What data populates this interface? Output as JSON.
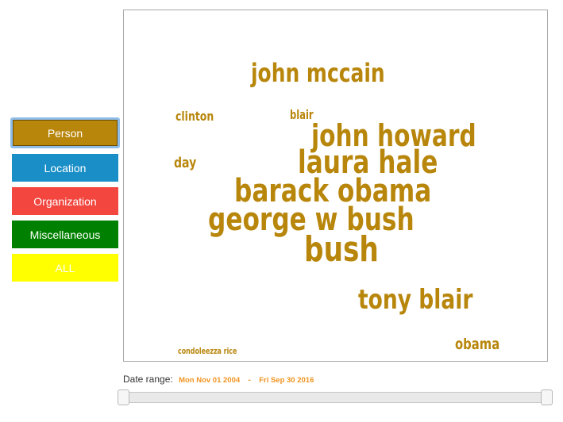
{
  "categories": [
    {
      "label": "Person",
      "color": "#b8860b",
      "selected": true
    },
    {
      "label": "Location",
      "color": "#1a8fc7"
    },
    {
      "label": "Organization",
      "color": "#f2463f"
    },
    {
      "label": "Miscellaneous",
      "color": "#008000"
    },
    {
      "label": "ALL",
      "color": "#ffff00"
    }
  ],
  "word_cloud": {
    "color": "#b8860b",
    "words": [
      "john mccain",
      "clinton",
      "blair",
      "john howard",
      "day",
      "laura hale",
      "barack obama",
      "george w bush",
      "bush",
      "tony blair",
      "obama",
      "condoleezza rice"
    ]
  },
  "date_range": {
    "label": "Date range:",
    "start": "Mon Nov 01 2004",
    "separator": "-",
    "end": "Fri Sep 30 2016"
  }
}
